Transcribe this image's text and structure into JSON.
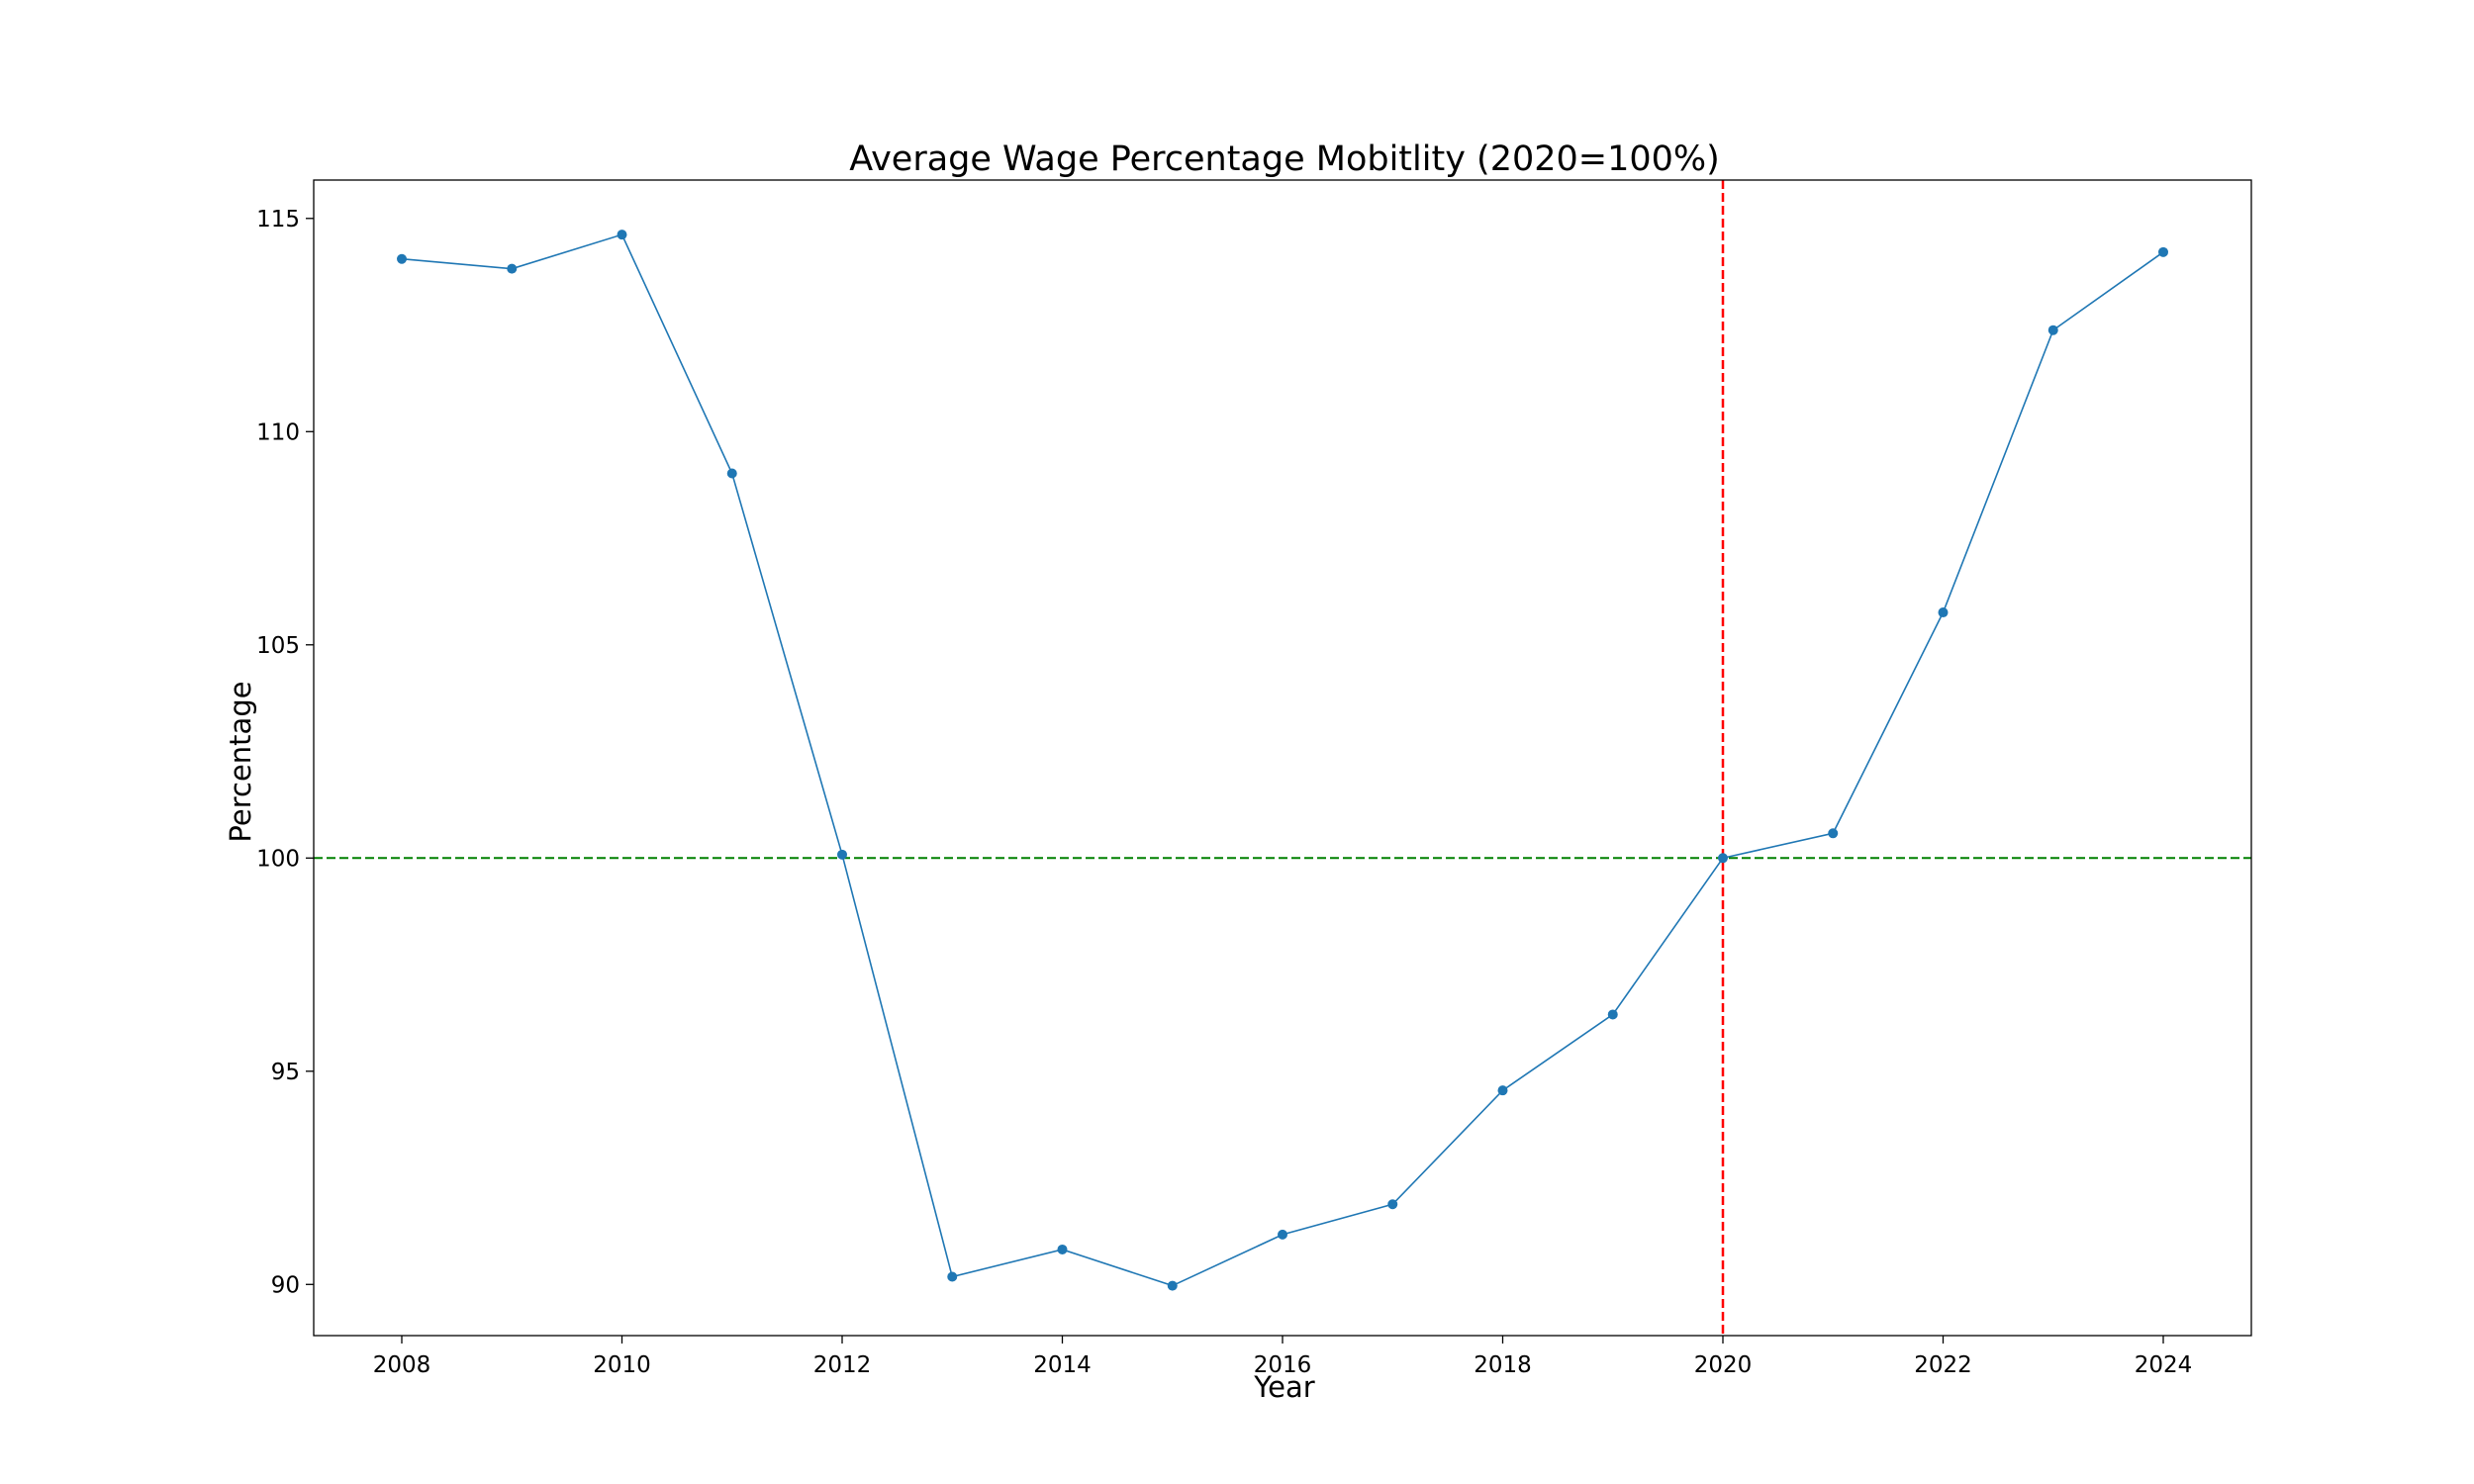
{
  "chart_data": {
    "type": "line",
    "title": "Average Wage Percentage Mobitlity (2020=100%)",
    "xlabel": "Year",
    "ylabel": "Percentage",
    "x": [
      2008,
      2009,
      2010,
      2011,
      2012,
      2013,
      2014,
      2015,
      2016,
      2017,
      2018,
      2019,
      2020,
      2021,
      2022,
      2023,
      2024
    ],
    "series": [
      {
        "values": [
          114.05,
          113.82,
          114.62,
          109.02,
          100.08,
          90.18,
          90.82,
          89.97,
          91.17,
          91.88,
          94.55,
          96.33,
          100.0,
          100.58,
          105.76,
          112.38,
          114.21
        ],
        "color": "#1f77b4"
      }
    ],
    "xticks": [
      2008,
      2010,
      2012,
      2014,
      2016,
      2018,
      2020,
      2022,
      2024
    ],
    "yticks": [
      90,
      95,
      100,
      105,
      110,
      115
    ],
    "xlim": [
      2007.2,
      2024.8
    ],
    "ylim": [
      88.8,
      115.9
    ],
    "reference_lines": [
      {
        "orientation": "horizontal",
        "value": 100,
        "style": "dashed",
        "color": "#008000"
      },
      {
        "orientation": "vertical",
        "value": 2020,
        "style": "dashed",
        "color": "#ff0000"
      }
    ],
    "grid": false,
    "legend": "none"
  }
}
